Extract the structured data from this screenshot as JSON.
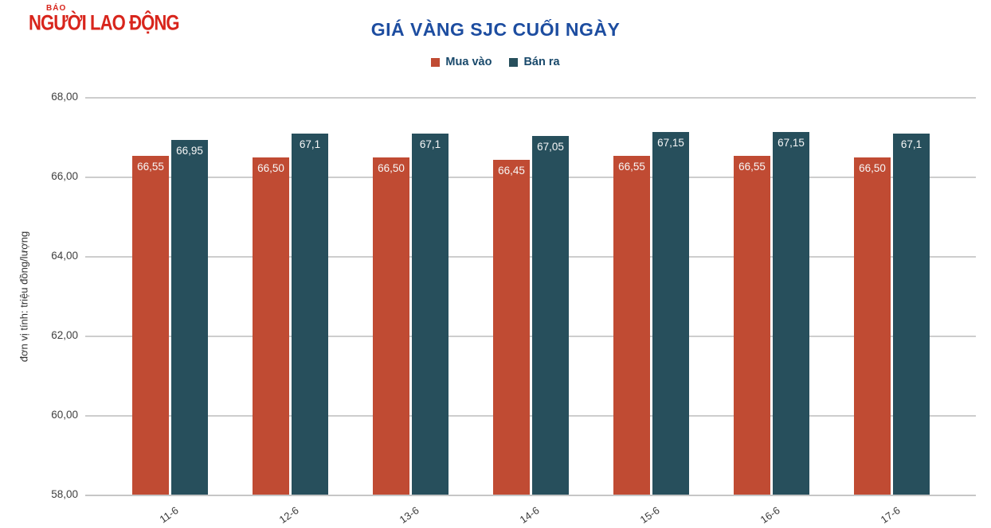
{
  "brand": {
    "tagline": "BÁO",
    "name": "NGƯỜI LAO ĐỘNG",
    "color": "#d8251c"
  },
  "title": "GIÁ VÀNG SJC CUỐI NGÀY",
  "legend": {
    "items": [
      {
        "label": "Mua vào",
        "color": "#c04b33"
      },
      {
        "label": "Bán ra",
        "color": "#274f5c"
      }
    ]
  },
  "y_axis": {
    "unit_label": "đơn vị tính: triệu đồng/lượng",
    "ticks": [
      {
        "value": 68,
        "label": "68,00"
      },
      {
        "value": 66,
        "label": "66,00"
      },
      {
        "value": 64,
        "label": "64,00"
      },
      {
        "value": 62,
        "label": "62,00"
      },
      {
        "value": 60,
        "label": "60,00"
      },
      {
        "value": 58,
        "label": "58,00"
      }
    ]
  },
  "chart_data": {
    "type": "bar",
    "title": "GIÁ VÀNG SJC CUỐI NGÀY",
    "categories": [
      "11-6",
      "12-6",
      "13-6",
      "14-6",
      "15-6",
      "16-6",
      "17-6"
    ],
    "series": [
      {
        "name": "Mua vào",
        "color": "#c04b33",
        "values": [
          66.55,
          66.5,
          66.5,
          66.45,
          66.55,
          66.55,
          66.5
        ],
        "labels": [
          "66,55",
          "66,50",
          "66,50",
          "66,45",
          "66,55",
          "66,55",
          "66,50"
        ]
      },
      {
        "name": "Bán ra",
        "color": "#274f5c",
        "values": [
          66.95,
          67.1,
          67.1,
          67.05,
          67.15,
          67.15,
          67.1
        ],
        "labels": [
          "66,95",
          "67,1",
          "67,1",
          "67,05",
          "67,15",
          "67,15",
          "67,1"
        ]
      }
    ],
    "xlabel": "",
    "ylabel": "đơn vị tính: triệu đồng/lượng",
    "ylim": [
      58,
      68
    ],
    "yticks": [
      68,
      66,
      64,
      62,
      60,
      58
    ],
    "grid": true,
    "legend_position": "top",
    "value_labels": "inside-top"
  }
}
